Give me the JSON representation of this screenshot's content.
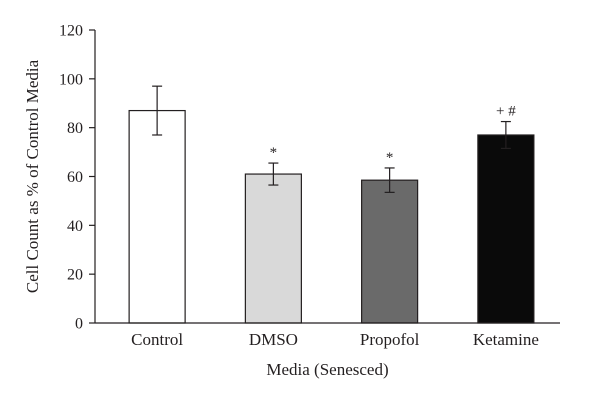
{
  "chart_data": {
    "type": "bar",
    "title": "",
    "xlabel": "Media (Senesced)",
    "ylabel": "Cell Count as % of Control Media",
    "ylim": [
      0,
      120
    ],
    "yticks": [
      0,
      20,
      40,
      60,
      80,
      100,
      120
    ],
    "grid": false,
    "categories": [
      "Control",
      "DMSO",
      "Propofol",
      "Ketamine"
    ],
    "values": [
      87,
      61,
      58.5,
      77
    ],
    "errors": [
      10,
      4.5,
      5,
      5.5
    ],
    "annotations": [
      "",
      "*",
      "*",
      "+ #"
    ],
    "bar_colors": [
      "#ffffff",
      "#d9d9d9",
      "#6a6a6a",
      "#0a0a0a"
    ]
  }
}
